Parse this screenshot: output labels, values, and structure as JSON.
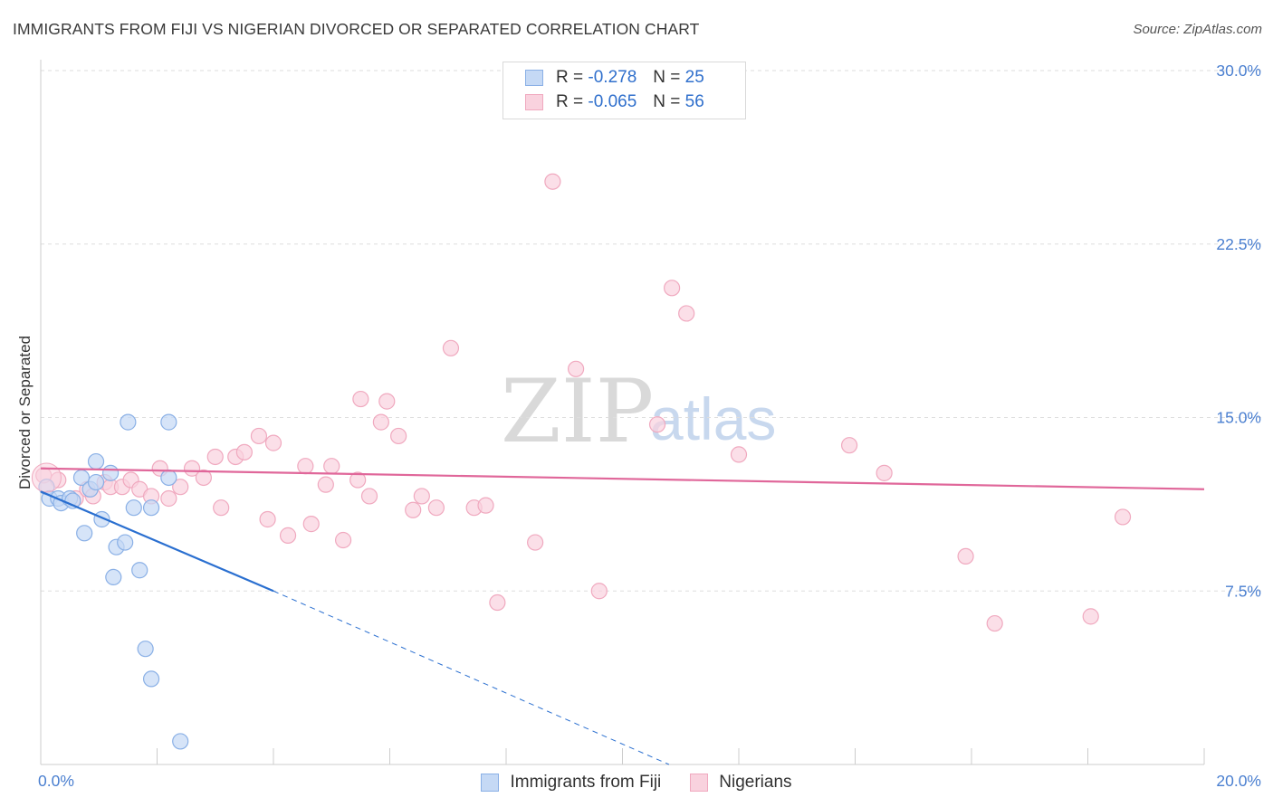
{
  "header": {
    "title": "IMMIGRANTS FROM FIJI VS NIGERIAN DIVORCED OR SEPARATED CORRELATION CHART",
    "source": "Source: ZipAtlas.com"
  },
  "watermark": {
    "zip": "ZIP",
    "atlas": "atlas"
  },
  "legend": {
    "rows": [
      {
        "r_label": "R =",
        "r_value": "-0.278",
        "n_label": "N =",
        "n_value": "25"
      },
      {
        "r_label": "R =",
        "r_value": "-0.065",
        "n_label": "N =",
        "n_value": "56"
      }
    ]
  },
  "colors": {
    "fiji_fill": "#c5d9f5",
    "fiji_stroke": "#8ab0e6",
    "fiji_line": "#2a6fd0",
    "nigeria_fill": "#f9d2de",
    "nigeria_stroke": "#f0a9bf",
    "nigeria_line": "#e0679a"
  },
  "chart_data": {
    "type": "scatter",
    "title": "IMMIGRANTS FROM FIJI VS NIGERIAN DIVORCED OR SEPARATED CORRELATION CHART",
    "xlabel": "",
    "ylabel": "Divorced or Separated",
    "xlim": [
      0,
      20
    ],
    "ylim": [
      0,
      30
    ],
    "x_tick_labels": [
      "0.0%",
      "20.0%"
    ],
    "y_ticks": [
      7.5,
      15.0,
      22.5,
      30.0
    ],
    "y_tick_labels": [
      "7.5%",
      "15.0%",
      "22.5%",
      "30.0%"
    ],
    "grid": true,
    "legend_position": "top-center",
    "series": [
      {
        "name": "Immigrants from Fiji",
        "r": -0.278,
        "n": 25,
        "points": [
          [
            0.1,
            12.0
          ],
          [
            0.15,
            11.5
          ],
          [
            0.3,
            11.5
          ],
          [
            0.35,
            11.3
          ],
          [
            0.5,
            11.5
          ],
          [
            0.55,
            11.4
          ],
          [
            0.7,
            12.4
          ],
          [
            0.85,
            11.9
          ],
          [
            0.95,
            13.1
          ],
          [
            1.2,
            12.6
          ],
          [
            0.75,
            10.0
          ],
          [
            1.05,
            10.6
          ],
          [
            1.3,
            9.4
          ],
          [
            1.45,
            9.6
          ],
          [
            1.6,
            11.1
          ],
          [
            1.9,
            11.1
          ],
          [
            2.2,
            12.4
          ],
          [
            2.2,
            14.8
          ],
          [
            1.5,
            14.8
          ],
          [
            1.25,
            8.1
          ],
          [
            1.7,
            8.4
          ],
          [
            1.8,
            5.0
          ],
          [
            1.9,
            3.7
          ],
          [
            2.4,
            1.0
          ],
          [
            0.95,
            12.2
          ]
        ],
        "trend": {
          "x": [
            0,
            4.0
          ],
          "y": [
            11.8,
            7.5
          ]
        },
        "trend_dashed": {
          "x": [
            4.0,
            10.8
          ],
          "y": [
            7.5,
            0
          ]
        }
      },
      {
        "name": "Nigerians",
        "r": -0.065,
        "n": 56,
        "points": [
          [
            0.05,
            12.5
          ],
          [
            0.3,
            12.3
          ],
          [
            0.6,
            11.5
          ],
          [
            0.8,
            11.9
          ],
          [
            0.9,
            11.6
          ],
          [
            1.1,
            12.2
          ],
          [
            1.2,
            12.0
          ],
          [
            1.4,
            12.0
          ],
          [
            1.55,
            12.3
          ],
          [
            1.7,
            11.9
          ],
          [
            1.9,
            11.6
          ],
          [
            2.05,
            12.8
          ],
          [
            2.2,
            11.5
          ],
          [
            2.4,
            12.0
          ],
          [
            2.6,
            12.8
          ],
          [
            2.8,
            12.4
          ],
          [
            3.0,
            13.3
          ],
          [
            3.1,
            11.1
          ],
          [
            3.35,
            13.3
          ],
          [
            3.5,
            13.5
          ],
          [
            3.75,
            14.2
          ],
          [
            3.9,
            10.6
          ],
          [
            4.0,
            13.9
          ],
          [
            4.25,
            9.9
          ],
          [
            4.55,
            12.9
          ],
          [
            4.65,
            10.4
          ],
          [
            4.9,
            12.1
          ],
          [
            5.0,
            12.9
          ],
          [
            5.2,
            9.7
          ],
          [
            5.45,
            12.3
          ],
          [
            5.5,
            15.8
          ],
          [
            5.65,
            11.6
          ],
          [
            5.85,
            14.8
          ],
          [
            5.95,
            15.7
          ],
          [
            6.15,
            14.2
          ],
          [
            6.4,
            11.0
          ],
          [
            6.55,
            11.6
          ],
          [
            6.8,
            11.1
          ],
          [
            7.05,
            18.0
          ],
          [
            7.45,
            11.1
          ],
          [
            7.65,
            11.2
          ],
          [
            7.85,
            7.0
          ],
          [
            8.5,
            9.6
          ],
          [
            8.8,
            25.2
          ],
          [
            9.2,
            17.1
          ],
          [
            9.6,
            7.5
          ],
          [
            10.6,
            14.7
          ],
          [
            10.85,
            20.6
          ],
          [
            11.1,
            19.5
          ],
          [
            12.0,
            13.4
          ],
          [
            13.9,
            13.8
          ],
          [
            14.5,
            12.6
          ],
          [
            15.9,
            9.0
          ],
          [
            16.4,
            6.1
          ],
          [
            18.05,
            6.4
          ],
          [
            18.6,
            10.7
          ]
        ],
        "trend": {
          "x": [
            0,
            20
          ],
          "y": [
            12.8,
            11.9
          ]
        }
      }
    ]
  }
}
